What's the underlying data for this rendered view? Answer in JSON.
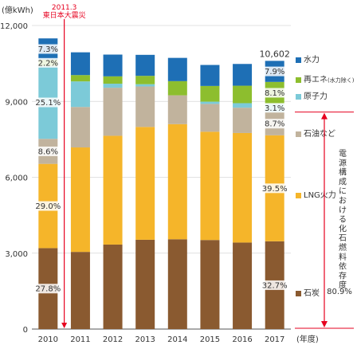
{
  "chart_data": {
    "type": "bar",
    "stacked": true,
    "y_unit": "(億kWh)",
    "x_unit": "(年度)",
    "ylim": [
      0,
      12000
    ],
    "yticks": [
      "0",
      "3,000",
      "6,000",
      "9,000",
      "12,000"
    ],
    "ytick_values": [
      0,
      3000,
      6000,
      9000,
      12000
    ],
    "categories": [
      "2010",
      "2011",
      "2012",
      "2013",
      "2014",
      "2015",
      "2016",
      "2017"
    ],
    "series": [
      {
        "name": "石炭",
        "color": "#8a5a30",
        "values": [
          3200,
          3050,
          3340,
          3530,
          3550,
          3520,
          3420,
          3470
        ]
      },
      {
        "name": "LNG火力",
        "color": "#f5b52a",
        "values": [
          3330,
          4130,
          4300,
          4460,
          4550,
          4280,
          4330,
          4190
        ]
      },
      {
        "name": "石油など",
        "color": "#c1b39d",
        "values": [
          990,
          1600,
          1900,
          1600,
          1140,
          1100,
          1000,
          920
        ]
      },
      {
        "name": "原子力",
        "color": "#7ccad8",
        "values": [
          2880,
          1010,
          160,
          90,
          0,
          90,
          180,
          330
        ]
      },
      {
        "name": "再エネ(水力除く)",
        "color": "#8dbe2e",
        "values": [
          250,
          250,
          290,
          330,
          560,
          620,
          690,
          860
        ]
      },
      {
        "name": "水力",
        "color": "#1e6fb5",
        "values": [
          840,
          900,
          860,
          830,
          920,
          830,
          860,
          832
        ]
      }
    ],
    "totals": {
      "2017": "10,602"
    },
    "annotations": {
      "2010": [
        "27.8%",
        "29.0%",
        "8.6%",
        "25.1%",
        "2.2%",
        "7.3%"
      ],
      "2017": [
        "32.7%",
        "39.5%",
        "8.7%",
        "3.1%",
        "8.1%",
        "7.9%"
      ]
    },
    "event_label_date": "2011.3",
    "event_label_name": "東日本大震災",
    "legend_labels": [
      "水力",
      "再エネ",
      "(水力除く)",
      "原子力",
      "石油など",
      "LNG火力",
      "石炭"
    ],
    "bracket_text": "電源構成における化石燃料依存度",
    "bracket_value": "80.9%",
    "grid": true
  }
}
